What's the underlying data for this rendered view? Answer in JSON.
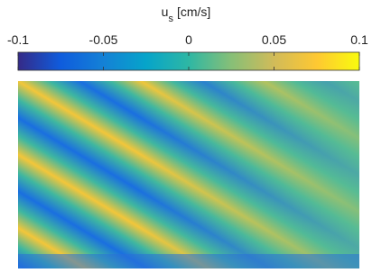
{
  "chart_data": {
    "type": "colorbar",
    "label": "u",
    "label_subscript": "s",
    "label_unit": "[cm/s]",
    "clim": [
      -0.1,
      0.1
    ],
    "cticks": [
      -0.1,
      -0.05,
      0,
      0.05,
      0.1
    ],
    "colormap": [
      "#352a87",
      "#0f5cdd",
      "#1481d6",
      "#06a4ca",
      "#2eb7a4",
      "#87bf77",
      "#d1bb59",
      "#fec832",
      "#f9fb0e"
    ]
  }
}
